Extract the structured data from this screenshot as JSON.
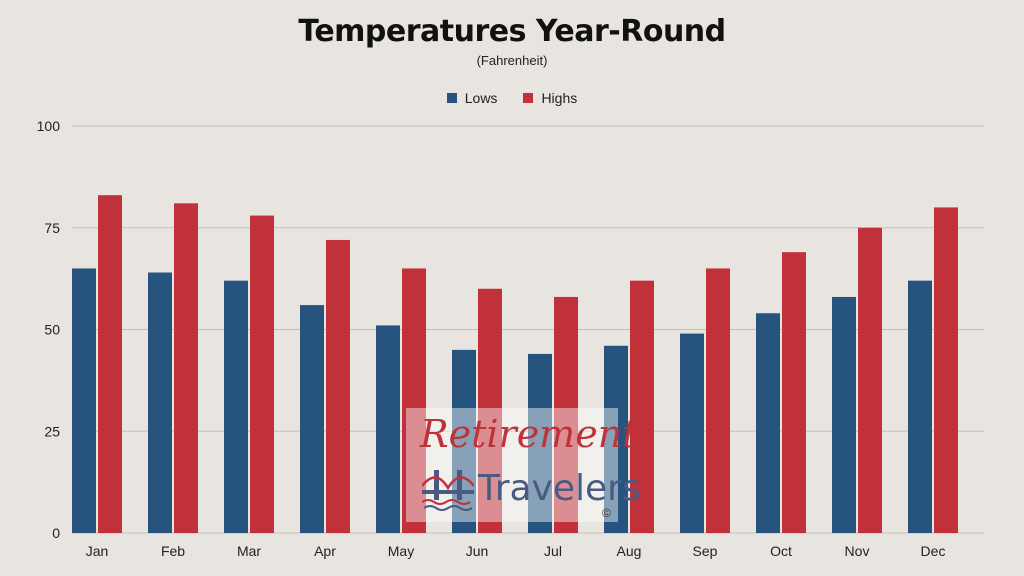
{
  "chart_data": {
    "type": "bar",
    "title": "Temperatures Year-Round",
    "subtitle": "(Fahrenheit)",
    "xlabel": "",
    "ylabel": "",
    "categories": [
      "Jan",
      "Feb",
      "Mar",
      "Apr",
      "May",
      "Jun",
      "Jul",
      "Aug",
      "Sep",
      "Oct",
      "Nov",
      "Dec"
    ],
    "series": [
      {
        "name": "Lows",
        "color": "#26547f",
        "values": [
          65,
          64,
          62,
          56,
          51,
          45,
          44,
          46,
          49,
          54,
          58,
          62
        ]
      },
      {
        "name": "Highs",
        "color": "#c0313a",
        "values": [
          83,
          81,
          78,
          72,
          65,
          60,
          58,
          62,
          65,
          69,
          75,
          80
        ]
      }
    ],
    "ylim": [
      0,
      100
    ],
    "yticks": [
      0,
      25,
      50,
      75,
      100
    ],
    "grid": true,
    "legend_position": "top"
  },
  "watermark": {
    "line1": "Retirement",
    "line2": "Travelers",
    "copyright": "©",
    "icon": "bridge-icon"
  },
  "colors": {
    "background": "#e8e4df",
    "grid": "#c4c0bb"
  }
}
